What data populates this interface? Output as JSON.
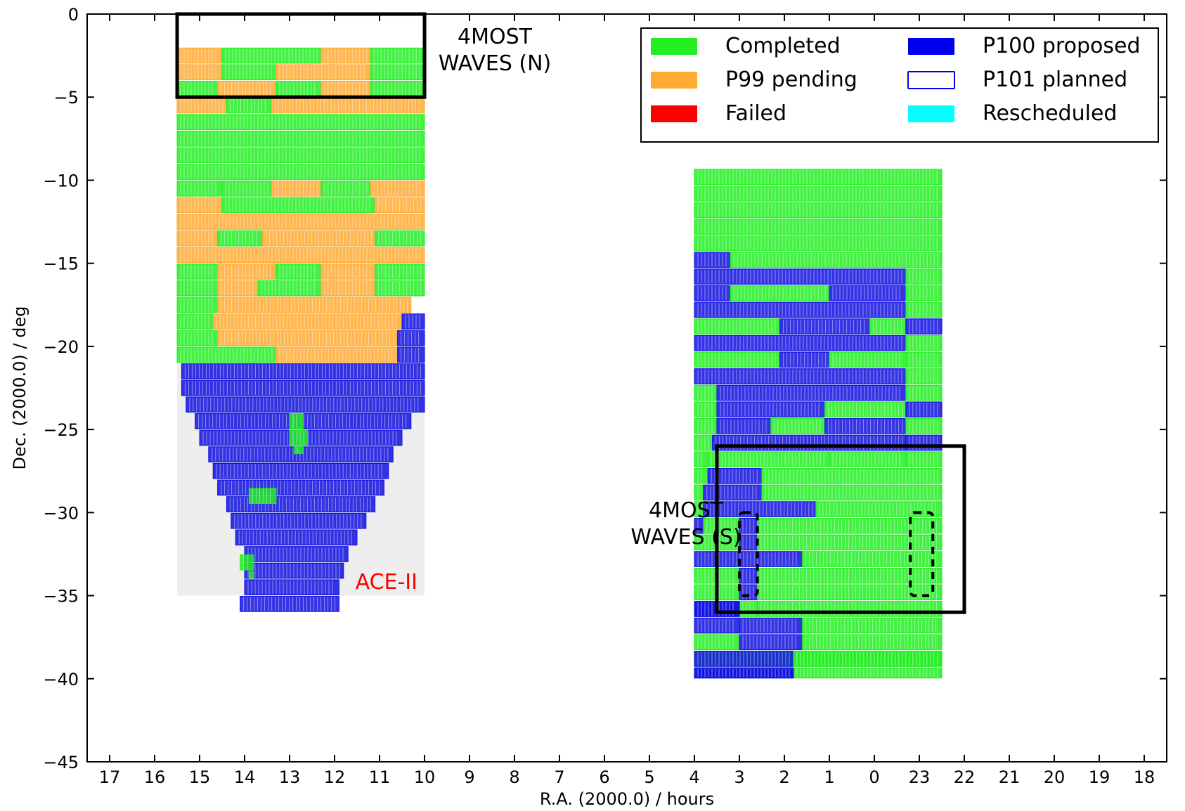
{
  "chart_data": {
    "type": "scatter",
    "xlabel": "R.A. (2000.0) / hours",
    "ylabel": "Dec. (2000.0) / deg",
    "x_axis": {
      "direction": "decreasing",
      "range_hours_offset": [
        -6.5,
        17.5
      ],
      "tick_labels": [
        "17",
        "16",
        "15",
        "14",
        "13",
        "12",
        "11",
        "10",
        "9",
        "8",
        "7",
        "6",
        "5",
        "4",
        "3",
        "2",
        "1",
        "0",
        "23",
        "22",
        "21",
        "20",
        "19",
        "18"
      ]
    },
    "y_axis": {
      "range": [
        -45,
        0
      ],
      "tick_labels": [
        "0",
        "−5",
        "−10",
        "−15",
        "−20",
        "−25",
        "−30",
        "−35",
        "−40",
        "−45"
      ]
    },
    "legend": {
      "placement": "top-right",
      "entries": [
        {
          "label": "Completed",
          "color": "#22ee22",
          "style": "filled"
        },
        {
          "label": "P99 pending",
          "color": "#ffaa33",
          "style": "filled"
        },
        {
          "label": "Failed",
          "color": "#ff0000",
          "style": "filled"
        },
        {
          "label": "P100 proposed",
          "color": "#0000ee",
          "style": "filled"
        },
        {
          "label": "P101 planned",
          "color": "#0000ee",
          "style": "outline"
        },
        {
          "label": "Rescheduled",
          "color": "#00ffff",
          "style": "filled"
        }
      ]
    },
    "colors": {
      "completed": "#22ee22",
      "pending": "#ffaa33",
      "proposed": "#1010e0",
      "ace_region": "#eeeeee",
      "ace_label": "#ff0000"
    },
    "annotations": [
      {
        "text": "4MOST\nWAVES (N)",
        "ra_start": 15.5,
        "ra_end": 10,
        "dec_top": 0,
        "dec_bottom": -5,
        "style": "solid"
      },
      {
        "text": "4MOST\nWAVES (S)",
        "ra_start": 3.5,
        "ra_end": 22,
        "dec_top": -26,
        "dec_bottom": -36,
        "style": "solid"
      },
      {
        "text": "",
        "ra_start": 3,
        "ra_end": 2.6,
        "dec_top": -30,
        "dec_bottom": -35,
        "style": "dashed"
      },
      {
        "text": "",
        "ra_start": 23.2,
        "ra_end": 22.7,
        "dec_top": -30,
        "dec_bottom": -35,
        "style": "dashed"
      },
      {
        "text": "ACE-II",
        "region": {
          "ra_start": 15.5,
          "ra_end": 10,
          "dec_top": -21,
          "dec_bottom": -35
        }
      }
    ],
    "regions": {
      "north_field": {
        "ra_start": 15.5,
        "ra_end": 10,
        "rows": [
          {
            "dec_top": -2,
            "dec_bottom": -5,
            "status": "mixed_completed_pending"
          },
          {
            "dec_top": -5,
            "dec_bottom": -19.9,
            "status": "mixed_completed_pending"
          },
          {
            "dec_top": -19.9,
            "dec_bottom": -35,
            "status": "proposed_with_completed_patches"
          }
        ]
      },
      "south_field": {
        "ra_start": 4,
        "ra_end": 22.5,
        "dec_top": -9.3,
        "dec_bottom": -40,
        "status": "mixed_completed_proposed"
      }
    }
  }
}
